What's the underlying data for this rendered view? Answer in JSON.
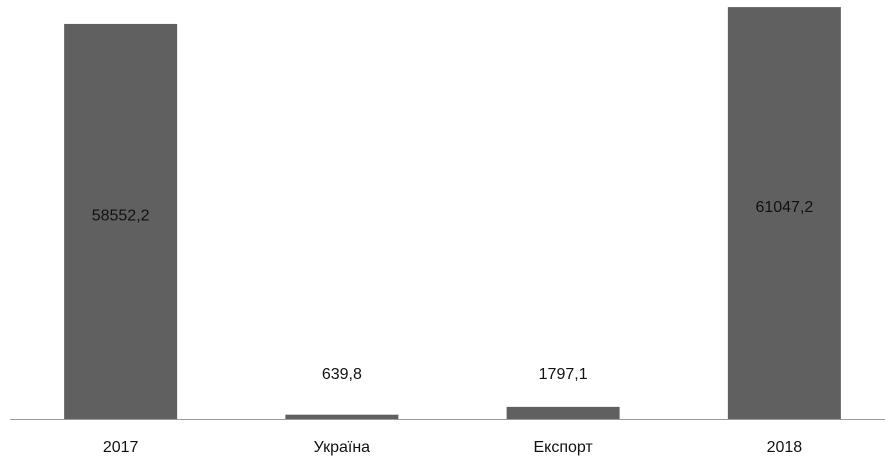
{
  "chart_data": {
    "type": "bar",
    "categories": [
      "2017",
      "Україна",
      "Експорт",
      "2018"
    ],
    "values": [
      58552.2,
      639.8,
      1797.1,
      61047.2
    ],
    "data_labels": [
      "58552,2",
      "639,8",
      "1797,1",
      "61047,2"
    ],
    "title": "",
    "xlabel": "",
    "ylabel": "",
    "ylim": [
      0,
      62100
    ],
    "grid": false,
    "legend": "none",
    "colors": {
      "bar": "#606060",
      "axis": "#9a9a9a",
      "text": "#111111"
    }
  }
}
